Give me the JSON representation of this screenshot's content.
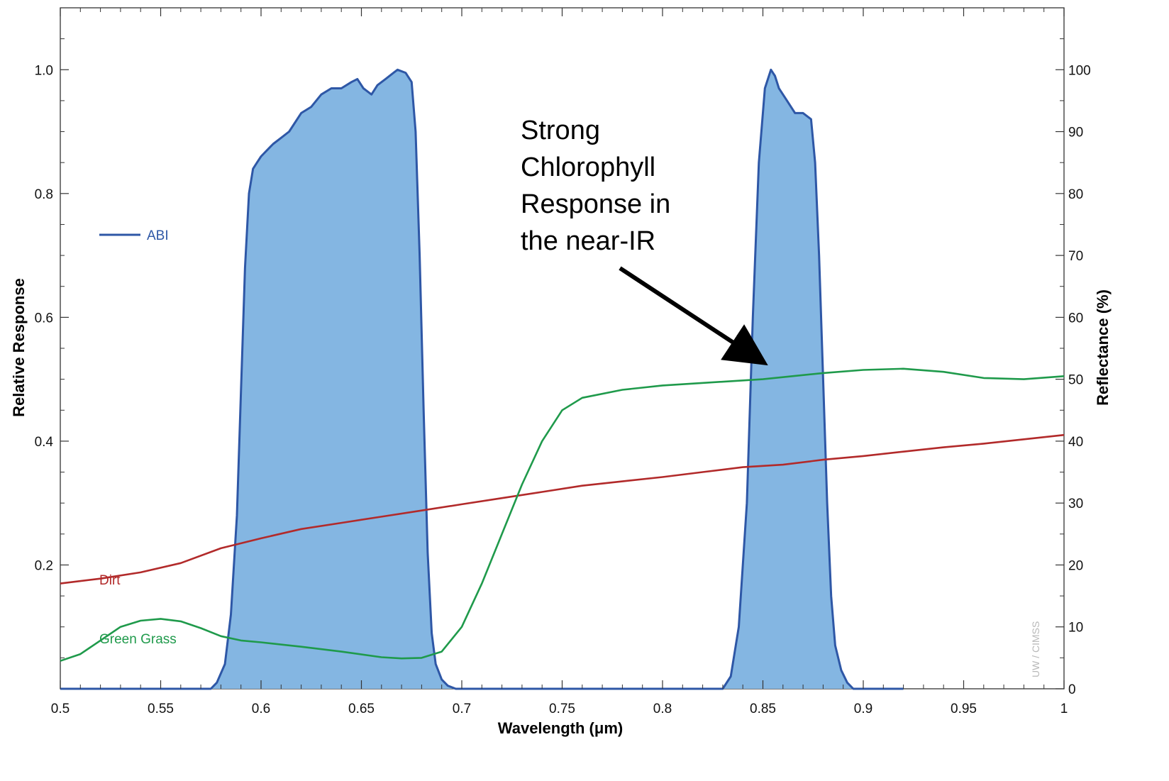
{
  "chart_data": {
    "type": "area",
    "xlabel": "Wavelength (μm)",
    "ylabel_left": "Relative Response",
    "ylabel_right": "Reflectance (%)",
    "xlim": [
      0.5,
      1.0
    ],
    "ylim_left": [
      0,
      1.1
    ],
    "ylim_right": [
      0,
      110
    ],
    "x_ticks": [
      "0.5",
      "0.55",
      "0.6",
      "0.65",
      "0.7",
      "0.75",
      "0.8",
      "0.85",
      "0.9",
      "0.95",
      "1"
    ],
    "y_left_ticks": [
      "0.2",
      "0.4",
      "0.6",
      "0.8",
      "1.0"
    ],
    "y_right_ticks": [
      "0",
      "10",
      "20",
      "30",
      "40",
      "50",
      "60",
      "70",
      "80",
      "90",
      "100"
    ],
    "grid": false,
    "series": [
      {
        "name": "ABI",
        "axis": "left",
        "style": "filled-area",
        "color": "#2e57a6",
        "fill": "#84b6e2",
        "x": [
          0.5,
          0.575,
          0.578,
          0.582,
          0.585,
          0.588,
          0.59,
          0.592,
          0.594,
          0.596,
          0.598,
          0.6,
          0.603,
          0.606,
          0.61,
          0.614,
          0.62,
          0.625,
          0.63,
          0.635,
          0.64,
          0.645,
          0.648,
          0.651,
          0.655,
          0.658,
          0.662,
          0.666,
          0.668,
          0.672,
          0.675,
          0.677,
          0.679,
          0.681,
          0.683,
          0.685,
          0.687,
          0.69,
          0.693,
          0.697,
          0.83,
          0.834,
          0.838,
          0.842,
          0.845,
          0.848,
          0.851,
          0.854,
          0.856,
          0.858,
          0.862,
          0.866,
          0.87,
          0.874,
          0.876,
          0.878,
          0.88,
          0.882,
          0.884,
          0.886,
          0.889,
          0.892,
          0.895,
          0.92
        ],
        "values": [
          0.0,
          0.0,
          0.01,
          0.04,
          0.12,
          0.28,
          0.48,
          0.68,
          0.8,
          0.84,
          0.85,
          0.86,
          0.87,
          0.88,
          0.89,
          0.9,
          0.93,
          0.94,
          0.96,
          0.97,
          0.97,
          0.98,
          0.985,
          0.97,
          0.96,
          0.975,
          0.985,
          0.995,
          1.0,
          0.995,
          0.98,
          0.9,
          0.7,
          0.45,
          0.22,
          0.09,
          0.04,
          0.015,
          0.005,
          0.0,
          0.0,
          0.02,
          0.1,
          0.3,
          0.6,
          0.85,
          0.97,
          1.0,
          0.99,
          0.97,
          0.95,
          0.93,
          0.93,
          0.92,
          0.85,
          0.7,
          0.5,
          0.3,
          0.15,
          0.07,
          0.03,
          0.01,
          0.0,
          0.0
        ]
      },
      {
        "name": "Dirt",
        "axis": "right",
        "color": "#b22a2a",
        "x": [
          0.5,
          0.52,
          0.54,
          0.56,
          0.58,
          0.6,
          0.62,
          0.64,
          0.66,
          0.68,
          0.7,
          0.72,
          0.74,
          0.76,
          0.78,
          0.8,
          0.82,
          0.84,
          0.86,
          0.88,
          0.9,
          0.92,
          0.94,
          0.96,
          0.98,
          1.0
        ],
        "values": [
          17.0,
          17.8,
          18.8,
          20.3,
          22.7,
          24.3,
          25.8,
          26.8,
          27.8,
          28.8,
          29.8,
          30.8,
          31.8,
          32.8,
          33.5,
          34.2,
          35.0,
          35.8,
          36.2,
          37.0,
          37.6,
          38.3,
          39.0,
          39.6,
          40.3,
          41.0
        ]
      },
      {
        "name": "Green Grass",
        "axis": "right",
        "color": "#1f9a4b",
        "x": [
          0.5,
          0.51,
          0.52,
          0.53,
          0.54,
          0.55,
          0.56,
          0.57,
          0.58,
          0.59,
          0.6,
          0.62,
          0.64,
          0.66,
          0.67,
          0.68,
          0.69,
          0.7,
          0.71,
          0.72,
          0.73,
          0.74,
          0.75,
          0.76,
          0.78,
          0.8,
          0.85,
          0.88,
          0.9,
          0.92,
          0.94,
          0.96,
          0.98,
          1.0
        ],
        "values": [
          4.5,
          5.6,
          7.8,
          10.0,
          11.0,
          11.3,
          10.9,
          9.8,
          8.5,
          7.8,
          7.5,
          6.8,
          6.0,
          5.1,
          4.9,
          5.0,
          6.0,
          10.0,
          17.0,
          25.0,
          33.0,
          40.0,
          45.0,
          47.0,
          48.3,
          49.0,
          50.0,
          51.0,
          51.5,
          51.7,
          51.2,
          50.2,
          50.0,
          50.5
        ]
      }
    ],
    "annotations": [
      {
        "lines": [
          "Strong",
          "Chlorophyll",
          "Response in",
          "the near-IR"
        ],
        "arrow_to": {
          "x": 0.849,
          "y_right": 53
        }
      }
    ],
    "watermark": "UW / CIMSS"
  }
}
